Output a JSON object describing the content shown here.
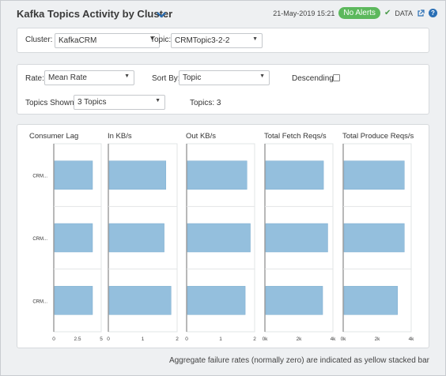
{
  "header": {
    "title": "Kafka Topics Activity by Cluster",
    "timestamp": "21-May-2019 15:21",
    "alert_badge": "No Alerts",
    "data_label": "DATA",
    "help_label": "?"
  },
  "filters": {
    "cluster_label": "Cluster:",
    "cluster_value": "KafkaCRM",
    "topic_label": "Topic:",
    "topic_value": "CRMTopic3-2-2"
  },
  "options": {
    "rate_label": "Rate:",
    "rate_value": "Mean Rate",
    "sort_label": "Sort By:",
    "sort_value": "Topic",
    "descending_label": "Descending:",
    "descending_checked": false,
    "topics_shown_label": "Topics Shown:",
    "topics_shown_value": "3 Topics",
    "topics_count": "Topics: 3"
  },
  "chart_data": {
    "type": "bar",
    "orientation": "horizontal",
    "categories": [
      "CRM...",
      "CRM...",
      "CRM..."
    ],
    "bar_color": "#94bfdd",
    "panels": [
      {
        "title": "Consumer Lag",
        "xlim": [
          0,
          5
        ],
        "ticks": [
          "0",
          "2.5",
          "5"
        ],
        "values": [
          4.0,
          4.0,
          4.0
        ]
      },
      {
        "title": "In KB/s",
        "xlim": [
          0,
          2
        ],
        "ticks": [
          "0",
          "1",
          "2"
        ],
        "values": [
          1.65,
          1.6,
          1.8
        ]
      },
      {
        "title": "Out KB/s",
        "xlim": [
          0,
          2
        ],
        "ticks": [
          "0",
          "1",
          "2"
        ],
        "values": [
          1.75,
          1.85,
          1.7
        ]
      },
      {
        "title": "Total Fetch Reqs/s",
        "xlim": [
          0,
          4000
        ],
        "ticks": [
          "0k",
          "2k",
          "4k"
        ],
        "values": [
          3400,
          3650,
          3350
        ]
      },
      {
        "title": "Total Produce Reqs/s",
        "xlim": [
          0,
          4000
        ],
        "ticks": [
          "0k",
          "2k",
          "4k"
        ],
        "values": [
          3550,
          3550,
          3150
        ]
      }
    ]
  },
  "footer": {
    "note": "Aggregate failure rates (normally zero) are indicated as yellow stacked bar"
  }
}
